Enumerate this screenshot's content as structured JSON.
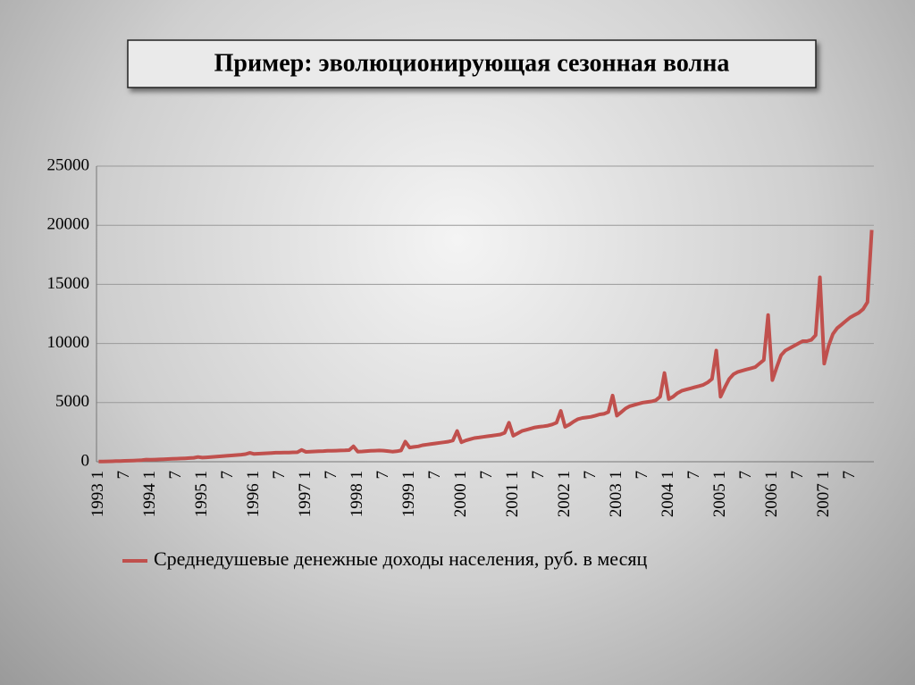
{
  "chart_data": {
    "type": "line",
    "title": "Пример: эволюционирующая сезонная волна",
    "categories": [
      "1993 1",
      null,
      null,
      null,
      null,
      null,
      "7",
      null,
      null,
      null,
      null,
      null,
      "1994 1",
      null,
      null,
      null,
      null,
      null,
      "7",
      null,
      null,
      null,
      null,
      null,
      "1995 1",
      null,
      null,
      null,
      null,
      null,
      "7",
      null,
      null,
      null,
      null,
      null,
      "1996 1",
      null,
      null,
      null,
      null,
      null,
      "7",
      null,
      null,
      null,
      null,
      null,
      "1997 1",
      null,
      null,
      null,
      null,
      null,
      "7",
      null,
      null,
      null,
      null,
      null,
      "1998 1",
      null,
      null,
      null,
      null,
      null,
      "7",
      null,
      null,
      null,
      null,
      null,
      "1999 1",
      null,
      null,
      null,
      null,
      null,
      "7",
      null,
      null,
      null,
      null,
      null,
      "2000 1",
      null,
      null,
      null,
      null,
      null,
      "7",
      null,
      null,
      null,
      null,
      null,
      "2001 1",
      null,
      null,
      null,
      null,
      null,
      "7",
      null,
      null,
      null,
      null,
      null,
      "2002 1",
      null,
      null,
      null,
      null,
      null,
      "7",
      null,
      null,
      null,
      null,
      null,
      "2003 1",
      null,
      null,
      null,
      null,
      null,
      "7",
      null,
      null,
      null,
      null,
      null,
      "2004 1",
      null,
      null,
      null,
      null,
      null,
      "7",
      null,
      null,
      null,
      null,
      null,
      "2005 1",
      null,
      null,
      null,
      null,
      null,
      "7",
      null,
      null,
      null,
      null,
      null,
      "2006 1",
      null,
      null,
      null,
      null,
      null,
      "7",
      null,
      null,
      null,
      null,
      null,
      "2007 1",
      null,
      null,
      null,
      null,
      null,
      "7",
      null,
      null,
      null,
      null,
      null
    ],
    "series": [
      {
        "name": "Среднедушевые денежные доходы населения, руб. в месяц",
        "color": "#c0504d",
        "values": [
          20,
          25,
          32,
          40,
          50,
          62,
          72,
          85,
          100,
          115,
          135,
          180,
          165,
          180,
          195,
          210,
          225,
          240,
          255,
          270,
          290,
          310,
          330,
          400,
          350,
          370,
          395,
          420,
          450,
          480,
          510,
          540,
          570,
          600,
          640,
          750,
          660,
          680,
          700,
          720,
          740,
          760,
          760,
          770,
          780,
          790,
          800,
          1000,
          830,
          850,
          870,
          890,
          900,
          920,
          930,
          940,
          950,
          960,
          980,
          1300,
          850,
          870,
          900,
          930,
          940,
          950,
          940,
          900,
          850,
          880,
          950,
          1700,
          1200,
          1250,
          1300,
          1400,
          1450,
          1500,
          1550,
          1600,
          1650,
          1700,
          1800,
          2600,
          1650,
          1800,
          1900,
          2000,
          2050,
          2100,
          2150,
          2200,
          2250,
          2300,
          2450,
          3300,
          2200,
          2400,
          2600,
          2700,
          2800,
          2900,
          2950,
          3000,
          3050,
          3150,
          3300,
          4300,
          2950,
          3150,
          3400,
          3600,
          3700,
          3750,
          3800,
          3900,
          4000,
          4050,
          4200,
          5600,
          3900,
          4200,
          4500,
          4700,
          4800,
          4900,
          5000,
          5050,
          5100,
          5200,
          5500,
          7500,
          5300,
          5500,
          5800,
          6000,
          6100,
          6200,
          6300,
          6400,
          6500,
          6700,
          7000,
          9400,
          5500,
          6300,
          7000,
          7400,
          7600,
          7700,
          7800,
          7900,
          8000,
          8300,
          8600,
          12400,
          6900,
          8000,
          9000,
          9400,
          9600,
          9800,
          10000,
          10200,
          10200,
          10300,
          10700,
          15600,
          8300,
          9800,
          10800,
          11300,
          11600,
          11900,
          12200,
          12400,
          12600,
          12900,
          13500,
          19600
        ]
      }
    ],
    "ylim": [
      0,
      25000
    ],
    "yticks": [
      0,
      5000,
      10000,
      15000,
      20000,
      25000
    ],
    "grid": true,
    "legend": "bottom"
  }
}
